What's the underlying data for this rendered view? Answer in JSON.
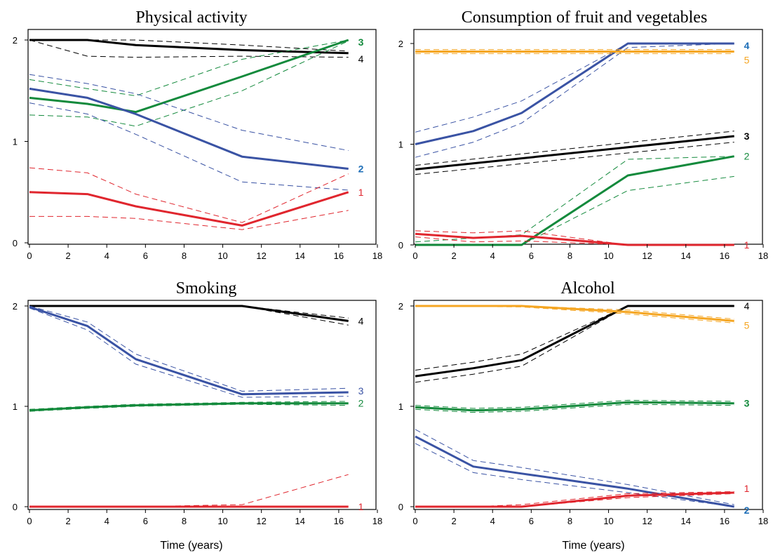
{
  "colors": {
    "red": "#E0262E",
    "blue": "#3A53A4",
    "green": "#138A3C",
    "black": "#000000",
    "orange": "#F5A623",
    "label_blue": "#1F6FB8"
  },
  "chart_data": [
    {
      "type": "line",
      "title": "Physical activity",
      "xlabel": "",
      "ylabel": "",
      "xlim": [
        0,
        18
      ],
      "ylim": [
        0,
        2
      ],
      "xticks": [
        0,
        2,
        4,
        6,
        8,
        10,
        12,
        14,
        16,
        18
      ],
      "yticks": [
        0,
        1,
        2
      ],
      "grid": false,
      "series": [
        {
          "name": "4",
          "color": "black",
          "label_color": "black",
          "label_bold": false,
          "x": [
            0,
            3,
            5.5,
            11,
            16.5
          ],
          "y": [
            2.0,
            2.0,
            1.95,
            1.9,
            1.87
          ],
          "upper": [
            2.0,
            2.0,
            2.0,
            1.95,
            1.89
          ],
          "lower": [
            2.0,
            1.84,
            1.83,
            1.84,
            1.83
          ]
        },
        {
          "name": "3",
          "color": "green",
          "label_color": "green",
          "label_bold": true,
          "x": [
            0,
            3,
            5.5,
            11,
            16.5
          ],
          "y": [
            1.43,
            1.37,
            1.29,
            1.64,
            2.0
          ],
          "upper": [
            1.61,
            1.52,
            1.45,
            1.81,
            2.0
          ],
          "lower": [
            1.26,
            1.24,
            1.15,
            1.5,
            1.99
          ]
        },
        {
          "name": "2",
          "color": "blue",
          "label_color": "label_blue",
          "label_bold": true,
          "x": [
            0,
            3,
            5.5,
            11,
            16.5
          ],
          "y": [
            1.52,
            1.43,
            1.27,
            0.85,
            0.73
          ],
          "upper": [
            1.66,
            1.57,
            1.47,
            1.11,
            0.91
          ],
          "lower": [
            1.38,
            1.27,
            1.07,
            0.6,
            0.52
          ]
        },
        {
          "name": "1",
          "color": "red",
          "label_color": "red",
          "label_bold": false,
          "x": [
            0,
            3,
            5.5,
            11,
            16.5
          ],
          "y": [
            0.5,
            0.48,
            0.36,
            0.17,
            0.5
          ],
          "upper": [
            0.74,
            0.69,
            0.48,
            0.2,
            0.68
          ],
          "lower": [
            0.26,
            0.26,
            0.24,
            0.13,
            0.32
          ]
        }
      ]
    },
    {
      "type": "line",
      "title": "Consumption of fruit and vegetables",
      "xlabel": "",
      "ylabel": "",
      "xlim": [
        0,
        18
      ],
      "ylim": [
        0,
        2
      ],
      "xticks": [
        0,
        2,
        4,
        6,
        8,
        10,
        12,
        14,
        16,
        18
      ],
      "yticks": [
        0,
        1,
        2
      ],
      "grid": false,
      "series": [
        {
          "name": "4",
          "color": "blue",
          "label_color": "label_blue",
          "label_bold": true,
          "x": [
            0,
            3,
            5.5,
            11,
            16.5
          ],
          "y": [
            1.0,
            1.13,
            1.31,
            2.0,
            2.0
          ],
          "upper": [
            1.12,
            1.27,
            1.43,
            2.0,
            2.0
          ],
          "lower": [
            0.87,
            1.02,
            1.21,
            1.96,
            2.0
          ]
        },
        {
          "name": "5",
          "color": "orange",
          "label_color": "orange",
          "label_bold": false,
          "x": [
            0,
            16.5
          ],
          "y": [
            1.92,
            1.92
          ],
          "upper": [
            1.94,
            1.94
          ],
          "lower": [
            1.9,
            1.9
          ]
        },
        {
          "name": "3",
          "color": "black",
          "label_color": "black",
          "label_bold": true,
          "x": [
            0,
            16.5
          ],
          "y": [
            0.75,
            1.08
          ],
          "upper": [
            0.79,
            1.13
          ],
          "lower": [
            0.7,
            1.02
          ]
        },
        {
          "name": "2",
          "color": "green",
          "label_color": "green",
          "label_bold": false,
          "x": [
            0,
            5.5,
            11,
            16.5
          ],
          "y": [
            0.0,
            0.0,
            0.69,
            0.88
          ],
          "upper": [
            0.03,
            0.1,
            0.85,
            0.88
          ],
          "lower": [
            0.0,
            0.0,
            0.54,
            0.68
          ]
        },
        {
          "name": "1",
          "color": "red",
          "label_color": "red",
          "label_bold": false,
          "x": [
            0,
            3,
            5.5,
            11,
            16.5
          ],
          "y": [
            0.11,
            0.07,
            0.09,
            0.0,
            0.0
          ],
          "upper": [
            0.14,
            0.12,
            0.14,
            0.0,
            0.0
          ],
          "lower": [
            0.08,
            0.03,
            0.04,
            0.0,
            0.0
          ]
        }
      ]
    },
    {
      "type": "line",
      "title": "Smoking",
      "xlabel": "Time (years)",
      "ylabel": "",
      "xlim": [
        0,
        18
      ],
      "ylim": [
        0,
        2
      ],
      "xticks": [
        0,
        2,
        4,
        6,
        8,
        10,
        12,
        14,
        16,
        18
      ],
      "yticks": [
        0,
        1,
        2
      ],
      "grid": false,
      "series": [
        {
          "name": "4",
          "color": "black",
          "label_color": "black",
          "label_bold": false,
          "x": [
            0,
            3,
            5.5,
            11,
            16.5
          ],
          "y": [
            2.0,
            2.0,
            2.0,
            2.0,
            1.85
          ],
          "upper": [
            2.0,
            2.0,
            2.0,
            2.0,
            1.88
          ],
          "lower": [
            2.0,
            2.0,
            2.0,
            2.0,
            1.81
          ]
        },
        {
          "name": "3",
          "color": "blue",
          "label_color": "blue",
          "label_bold": false,
          "x": [
            0,
            3,
            5.5,
            11,
            16.5
          ],
          "y": [
            1.99,
            1.8,
            1.47,
            1.12,
            1.14
          ],
          "upper": [
            2.0,
            1.84,
            1.52,
            1.15,
            1.18
          ],
          "lower": [
            1.98,
            1.76,
            1.42,
            1.09,
            1.1
          ]
        },
        {
          "name": "2",
          "color": "green",
          "label_color": "green",
          "label_bold": false,
          "x": [
            0,
            3,
            5.5,
            11,
            16.5
          ],
          "y": [
            0.96,
            0.99,
            1.01,
            1.03,
            1.03
          ],
          "upper": [
            0.97,
            1.0,
            1.02,
            1.04,
            1.05
          ],
          "lower": [
            0.95,
            0.98,
            1.0,
            1.02,
            1.01
          ]
        },
        {
          "name": "1",
          "color": "red",
          "label_color": "red",
          "label_bold": false,
          "x": [
            0,
            3,
            5.5,
            11,
            16.5
          ],
          "y": [
            0.0,
            0.0,
            0.0,
            0.0,
            0.0
          ],
          "upper": [
            0.0,
            0.0,
            0.0,
            0.02,
            0.32
          ],
          "lower": [
            0.0,
            0.0,
            0.0,
            0.0,
            0.0
          ]
        }
      ]
    },
    {
      "type": "line",
      "title": "Alcohol",
      "xlabel": "Time (years)",
      "ylabel": "",
      "xlim": [
        0,
        18
      ],
      "ylim": [
        0,
        2
      ],
      "xticks": [
        0,
        2,
        4,
        6,
        8,
        10,
        12,
        14,
        16,
        18
      ],
      "yticks": [
        0,
        1,
        2
      ],
      "grid": false,
      "series": [
        {
          "name": "4",
          "color": "black",
          "label_color": "black",
          "label_bold": false,
          "x": [
            0,
            3,
            5.5,
            11,
            16.5
          ],
          "y": [
            1.3,
            1.38,
            1.46,
            2.0,
            2.0
          ],
          "upper": [
            1.36,
            1.44,
            1.52,
            2.0,
            2.0
          ],
          "lower": [
            1.24,
            1.32,
            1.4,
            2.0,
            2.0
          ]
        },
        {
          "name": "5",
          "color": "orange",
          "label_color": "orange",
          "label_bold": false,
          "x": [
            0,
            5.5,
            11,
            16.5
          ],
          "y": [
            2.0,
            2.0,
            1.94,
            1.85
          ],
          "upper": [
            2.0,
            2.0,
            1.96,
            1.87
          ],
          "lower": [
            2.0,
            1.99,
            1.92,
            1.83
          ]
        },
        {
          "name": "3",
          "color": "green",
          "label_color": "green",
          "label_bold": true,
          "x": [
            0,
            3,
            5.5,
            11,
            16.5
          ],
          "y": [
            0.99,
            0.96,
            0.97,
            1.04,
            1.03
          ],
          "upper": [
            1.01,
            0.98,
            0.99,
            1.06,
            1.05
          ],
          "lower": [
            0.97,
            0.94,
            0.95,
            1.02,
            1.01
          ]
        },
        {
          "name": "2",
          "color": "blue",
          "label_color": "label_blue",
          "label_bold": true,
          "x": [
            0,
            3,
            5.5,
            11,
            16.5
          ],
          "y": [
            0.7,
            0.4,
            0.33,
            0.18,
            0.0
          ],
          "upper": [
            0.77,
            0.46,
            0.39,
            0.22,
            0.02
          ],
          "lower": [
            0.63,
            0.34,
            0.27,
            0.14,
            0.0
          ]
        },
        {
          "name": "1",
          "color": "red",
          "label_color": "red",
          "label_bold": false,
          "x": [
            0,
            3,
            5.5,
            11,
            16.5
          ],
          "y": [
            0.0,
            0.0,
            0.0,
            0.11,
            0.14
          ],
          "upper": [
            0.0,
            0.0,
            0.02,
            0.13,
            0.15
          ],
          "lower": [
            0.0,
            0.0,
            0.0,
            0.09,
            0.13
          ]
        }
      ]
    }
  ]
}
